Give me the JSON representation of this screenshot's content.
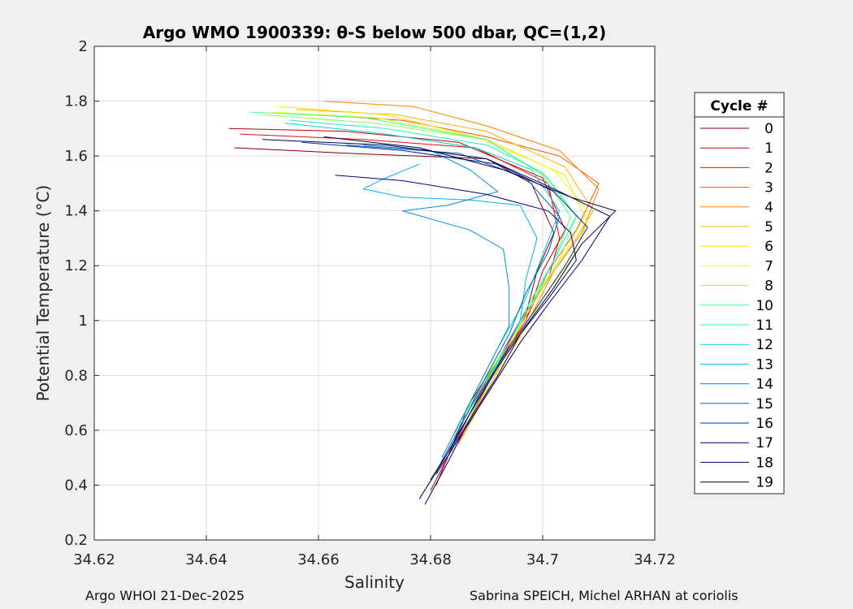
{
  "chart_data": {
    "type": "line",
    "title": "Argo WMO 1900339: θ-S below 500 dbar,  QC=(1,2)",
    "xlabel": "Salinity",
    "ylabel": "Potential Temperature (°C)",
    "xlim": [
      34.62,
      34.72
    ],
    "ylim": [
      0.2,
      2.0
    ],
    "xticks": [
      "34.62",
      "34.64",
      "34.66",
      "34.68",
      "34.7",
      "34.72"
    ],
    "yticks": [
      "0.2",
      "0.4",
      "0.6",
      "0.8",
      "1",
      "1.2",
      "1.4",
      "1.6",
      "1.8",
      "2"
    ],
    "grid": true,
    "legend_title": "Cycle #",
    "legend_position": "right",
    "series": [
      {
        "name": "0",
        "color": "#800000",
        "points": [
          [
            34.645,
            1.63
          ],
          [
            34.665,
            1.61
          ],
          [
            34.69,
            1.59
          ],
          [
            34.698,
            1.5
          ],
          [
            34.702,
            1.32
          ],
          [
            34.699,
            1.18
          ],
          [
            34.697,
            1.02
          ],
          [
            34.692,
            0.86
          ],
          [
            34.687,
            0.7
          ],
          [
            34.684,
            0.55
          ],
          [
            34.681,
            0.4
          ]
        ]
      },
      {
        "name": "1",
        "color": "#bf0000",
        "points": [
          [
            34.644,
            1.7
          ],
          [
            34.665,
            1.69
          ],
          [
            34.685,
            1.65
          ],
          [
            34.7,
            1.52
          ],
          [
            34.704,
            1.33
          ],
          [
            34.7,
            1.18
          ],
          [
            34.697,
            1.0
          ],
          [
            34.692,
            0.84
          ],
          [
            34.688,
            0.68
          ],
          [
            34.683,
            0.5
          ],
          [
            34.68,
            0.38
          ]
        ]
      },
      {
        "name": "2",
        "color": "#e01010",
        "points": [
          [
            34.646,
            1.68
          ],
          [
            34.668,
            1.66
          ],
          [
            34.688,
            1.63
          ],
          [
            34.701,
            1.5
          ],
          [
            34.703,
            1.3
          ],
          [
            34.701,
            1.15
          ],
          [
            34.696,
            1.0
          ],
          [
            34.691,
            0.82
          ],
          [
            34.686,
            0.64
          ],
          [
            34.682,
            0.45
          ]
        ]
      },
      {
        "name": "3",
        "color": "#ff5000",
        "points": [
          [
            34.66,
            1.75
          ],
          [
            34.675,
            1.73
          ],
          [
            34.69,
            1.67
          ],
          [
            34.703,
            1.6
          ],
          [
            34.71,
            1.5
          ],
          [
            34.706,
            1.33
          ],
          [
            34.701,
            1.18
          ],
          [
            34.697,
            1.0
          ],
          [
            34.692,
            0.85
          ],
          [
            34.688,
            0.68
          ],
          [
            34.684,
            0.52
          ]
        ]
      },
      {
        "name": "4",
        "color": "#ff8000",
        "points": [
          [
            34.661,
            1.8
          ],
          [
            34.677,
            1.78
          ],
          [
            34.69,
            1.71
          ],
          [
            34.703,
            1.62
          ],
          [
            34.71,
            1.48
          ],
          [
            34.707,
            1.32
          ],
          [
            34.702,
            1.18
          ],
          [
            34.698,
            1.02
          ],
          [
            34.693,
            0.86
          ],
          [
            34.689,
            0.7
          ],
          [
            34.685,
            0.55
          ]
        ]
      },
      {
        "name": "5",
        "color": "#ffb000",
        "points": [
          [
            34.656,
            1.77
          ],
          [
            34.674,
            1.75
          ],
          [
            34.69,
            1.69
          ],
          [
            34.704,
            1.56
          ],
          [
            34.709,
            1.4
          ],
          [
            34.705,
            1.27
          ],
          [
            34.7,
            1.12
          ],
          [
            34.696,
            0.98
          ],
          [
            34.692,
            0.82
          ],
          [
            34.688,
            0.67
          ],
          [
            34.684,
            0.52
          ]
        ]
      },
      {
        "name": "6",
        "color": "#ffe000",
        "points": [
          [
            34.653,
            1.78
          ],
          [
            34.672,
            1.75
          ],
          [
            34.69,
            1.66
          ],
          [
            34.704,
            1.53
          ],
          [
            34.708,
            1.36
          ],
          [
            34.705,
            1.22
          ],
          [
            34.7,
            1.08
          ],
          [
            34.696,
            0.94
          ],
          [
            34.691,
            0.78
          ],
          [
            34.687,
            0.64
          ]
        ]
      },
      {
        "name": "7",
        "color": "#e0ff20",
        "points": [
          [
            34.652,
            1.76
          ],
          [
            34.67,
            1.74
          ],
          [
            34.688,
            1.67
          ],
          [
            34.702,
            1.55
          ],
          [
            34.708,
            1.4
          ],
          [
            34.704,
            1.25
          ],
          [
            34.699,
            1.1
          ],
          [
            34.695,
            0.95
          ],
          [
            34.69,
            0.8
          ],
          [
            34.686,
            0.64
          ]
        ]
      },
      {
        "name": "8",
        "color": "#90ff60",
        "points": [
          [
            34.65,
            1.75
          ],
          [
            34.67,
            1.72
          ],
          [
            34.69,
            1.66
          ],
          [
            34.701,
            1.52
          ],
          [
            34.706,
            1.38
          ],
          [
            34.703,
            1.22
          ],
          [
            34.698,
            1.06
          ],
          [
            34.694,
            0.92
          ],
          [
            34.69,
            0.78
          ],
          [
            34.686,
            0.6
          ]
        ]
      },
      {
        "name": "10",
        "color": "#40ff90",
        "points": [
          [
            34.648,
            1.76
          ],
          [
            34.668,
            1.74
          ],
          [
            34.69,
            1.66
          ],
          [
            34.7,
            1.53
          ],
          [
            34.705,
            1.38
          ],
          [
            34.702,
            1.22
          ],
          [
            34.698,
            1.06
          ],
          [
            34.694,
            0.92
          ],
          [
            34.689,
            0.76
          ],
          [
            34.685,
            0.62
          ]
        ]
      },
      {
        "name": "11",
        "color": "#20f0c0",
        "points": [
          [
            34.655,
            1.73
          ],
          [
            34.672,
            1.7
          ],
          [
            34.69,
            1.64
          ],
          [
            34.7,
            1.54
          ],
          [
            34.706,
            1.38
          ],
          [
            34.702,
            1.22
          ],
          [
            34.697,
            1.04
          ],
          [
            34.693,
            0.88
          ],
          [
            34.689,
            0.74
          ],
          [
            34.684,
            0.58
          ]
        ]
      },
      {
        "name": "12",
        "color": "#00d0e0",
        "points": [
          [
            34.654,
            1.72
          ],
          [
            34.672,
            1.68
          ],
          [
            34.688,
            1.63
          ],
          [
            34.698,
            1.55
          ],
          [
            34.703,
            1.4
          ],
          [
            34.7,
            1.24
          ],
          [
            34.697,
            1.08
          ],
          [
            34.692,
            0.9
          ],
          [
            34.688,
            0.74
          ],
          [
            34.684,
            0.58
          ]
        ]
      },
      {
        "name": "13",
        "color": "#00b0ff",
        "points": [
          [
            34.678,
            1.57
          ],
          [
            34.672,
            1.52
          ],
          [
            34.668,
            1.48
          ],
          [
            34.675,
            1.45
          ],
          [
            34.687,
            1.44
          ],
          [
            34.696,
            1.42
          ],
          [
            34.699,
            1.3
          ],
          [
            34.697,
            1.15
          ],
          [
            34.696,
            1.0
          ],
          [
            34.692,
            0.84
          ],
          [
            34.687,
            0.66
          ],
          [
            34.683,
            0.5
          ]
        ]
      },
      {
        "name": "14",
        "color": "#0090e0",
        "points": [
          [
            34.668,
            1.64
          ],
          [
            34.68,
            1.62
          ],
          [
            34.687,
            1.55
          ],
          [
            34.692,
            1.47
          ],
          [
            34.683,
            1.42
          ],
          [
            34.675,
            1.4
          ],
          [
            34.687,
            1.33
          ],
          [
            34.693,
            1.26
          ],
          [
            34.694,
            1.12
          ],
          [
            34.694,
            0.98
          ],
          [
            34.69,
            0.82
          ],
          [
            34.686,
            0.66
          ],
          [
            34.682,
            0.5
          ]
        ]
      },
      {
        "name": "15",
        "color": "#0060c0",
        "points": [
          [
            34.665,
            1.64
          ],
          [
            34.685,
            1.61
          ],
          [
            34.697,
            1.52
          ],
          [
            34.703,
            1.38
          ],
          [
            34.701,
            1.25
          ],
          [
            34.697,
            1.1
          ],
          [
            34.694,
            0.95
          ],
          [
            34.69,
            0.8
          ],
          [
            34.686,
            0.64
          ],
          [
            34.681,
            0.45
          ]
        ]
      },
      {
        "name": "16",
        "color": "#0030a0",
        "points": [
          [
            34.657,
            1.65
          ],
          [
            34.675,
            1.62
          ],
          [
            34.692,
            1.57
          ],
          [
            34.702,
            1.47
          ],
          [
            34.708,
            1.34
          ],
          [
            34.704,
            1.2
          ],
          [
            34.699,
            1.05
          ],
          [
            34.694,
            0.9
          ],
          [
            34.689,
            0.74
          ],
          [
            34.685,
            0.58
          ],
          [
            34.68,
            0.42
          ]
        ]
      },
      {
        "name": "17",
        "color": "#000080",
        "points": [
          [
            34.663,
            1.53
          ],
          [
            34.675,
            1.51
          ],
          [
            34.69,
            1.46
          ],
          [
            34.701,
            1.4
          ],
          [
            34.705,
            1.32
          ],
          [
            34.706,
            1.22
          ],
          [
            34.701,
            1.08
          ],
          [
            34.696,
            0.95
          ],
          [
            34.692,
            0.8
          ],
          [
            34.687,
            0.64
          ],
          [
            34.683,
            0.48
          ],
          [
            34.679,
            0.33
          ]
        ]
      },
      {
        "name": "18",
        "color": "#000060",
        "points": [
          [
            34.65,
            1.66
          ],
          [
            34.672,
            1.64
          ],
          [
            34.69,
            1.59
          ],
          [
            34.702,
            1.48
          ],
          [
            34.712,
            1.38
          ],
          [
            34.707,
            1.22
          ],
          [
            34.701,
            1.06
          ],
          [
            34.696,
            0.92
          ],
          [
            34.691,
            0.76
          ],
          [
            34.686,
            0.6
          ],
          [
            34.681,
            0.44
          ]
        ]
      },
      {
        "name": "19",
        "color": "#000030",
        "points": [
          [
            34.661,
            1.67
          ],
          [
            34.678,
            1.63
          ],
          [
            34.693,
            1.55
          ],
          [
            34.705,
            1.45
          ],
          [
            34.713,
            1.4
          ],
          [
            34.707,
            1.28
          ],
          [
            34.702,
            1.12
          ],
          [
            34.697,
            0.98
          ],
          [
            34.692,
            0.83
          ],
          [
            34.687,
            0.66
          ],
          [
            34.682,
            0.48
          ],
          [
            34.678,
            0.35
          ]
        ]
      }
    ]
  },
  "footer": {
    "left": "Argo WHOI 21-Dec-2025",
    "right": "Sabrina SPEICH, Michel ARHAN at coriolis"
  }
}
